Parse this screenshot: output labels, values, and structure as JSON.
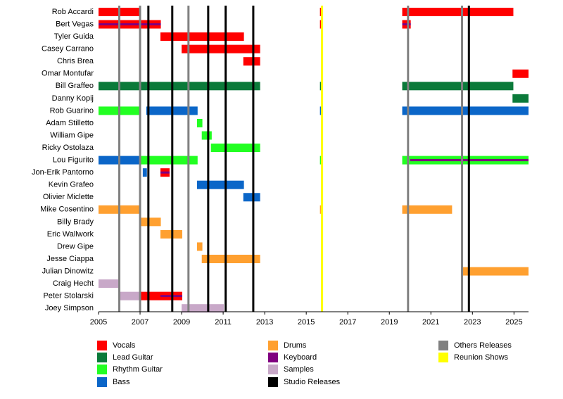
{
  "chart_data": {
    "type": "timeline",
    "categories": [
      "Rob Accardi",
      "Bert Vegas",
      "Tyler Guida",
      "Casey Carrano",
      "Chris Brea",
      "Omar Montufar",
      "Bill Graffeo",
      "Danny Kopij",
      "Rob Guarino",
      "Adam Stilletto",
      "William Gipe",
      "Ricky Ostolaza",
      "Lou Figurito",
      "Jon-Erik Pantorno",
      "Kevin Grafeo",
      "Olivier Miclette",
      "Mike Cosentino",
      "Billy Brady",
      "Eric Wallwork",
      "Drew Gipe",
      "Jesse Ciappa",
      "Julian Dinowitz",
      "Craig Hecht",
      "Peter Stolarski",
      "Joey Simpson"
    ],
    "xlim": [
      2005,
      2025.7
    ],
    "xticks": [
      2005,
      2007,
      2009,
      2011,
      2013,
      2015,
      2017,
      2019,
      2021,
      2023,
      2025
    ],
    "series": [
      {
        "name": "Vocals",
        "color": "#ff0000",
        "bars": [
          [
            0,
            2005,
            2007.03
          ],
          [
            0,
            2015.66,
            2015.8
          ],
          [
            0,
            2019.62,
            2024.97
          ],
          [
            1,
            2005,
            2008.0
          ],
          [
            1,
            2015.66,
            2015.8
          ],
          [
            1,
            2019.62,
            2020.03
          ],
          [
            2,
            2007.98,
            2012.0
          ],
          [
            3,
            2009.0,
            2012.78
          ],
          [
            4,
            2011.97,
            2012.78
          ],
          [
            5,
            2024.93,
            2025.7
          ],
          [
            13,
            2007.98,
            2008.42
          ],
          [
            23,
            2007.0,
            2009.03
          ]
        ]
      },
      {
        "name": "Lead Guitar",
        "color": "#0b7a3a",
        "bars": [
          [
            6,
            2005,
            2012.78
          ],
          [
            6,
            2015.66,
            2015.8
          ],
          [
            6,
            2019.62,
            2024.97
          ],
          [
            7,
            2024.93,
            2025.7
          ]
        ]
      },
      {
        "name": "Rhythm Guitar",
        "color": "#22ff22",
        "bars": [
          [
            8,
            2005,
            2007.03
          ],
          [
            9,
            2009.74,
            2010.0
          ],
          [
            10,
            2009.97,
            2010.45
          ],
          [
            11,
            2010.41,
            2012.78
          ],
          [
            12,
            2007.0,
            2009.77
          ],
          [
            12,
            2015.66,
            2015.8
          ],
          [
            12,
            2019.62,
            2025.7
          ]
        ]
      },
      {
        "name": "Bass",
        "color": "#0b66c8",
        "bars": [
          [
            8,
            2007.3,
            2009.77
          ],
          [
            8,
            2015.66,
            2015.8
          ],
          [
            8,
            2019.62,
            2025.7
          ],
          [
            12,
            2005,
            2007.03
          ],
          [
            13,
            2007.13,
            2007.33
          ],
          [
            14,
            2009.74,
            2012.0
          ],
          [
            15,
            2011.97,
            2012.78
          ]
        ]
      },
      {
        "name": "Drums",
        "color": "#ffa030",
        "bars": [
          [
            16,
            2005,
            2007.03
          ],
          [
            16,
            2015.66,
            2015.8
          ],
          [
            16,
            2019.62,
            2022.02
          ],
          [
            17,
            2007.0,
            2008.0
          ],
          [
            18,
            2007.98,
            2009.03
          ],
          [
            19,
            2009.74,
            2010.0
          ],
          [
            20,
            2009.97,
            2012.78
          ],
          [
            21,
            2022.5,
            2025.7
          ]
        ]
      },
      {
        "name": "Keyboard",
        "color": "#800080",
        "thin": true,
        "bars": [
          [
            1,
            2005,
            2008.0
          ],
          [
            1,
            2019.62,
            2020.03
          ],
          [
            12,
            2020.0,
            2025.7
          ],
          [
            13,
            2007.98,
            2008.42
          ],
          [
            23,
            2007.98,
            2009.03
          ]
        ]
      },
      {
        "name": "Samples",
        "color": "#c8a8c8",
        "bars": [
          [
            22,
            2005,
            2006.03
          ],
          [
            23,
            2006.0,
            2007.03
          ],
          [
            24,
            2009.0,
            2011.03
          ]
        ]
      }
    ],
    "lines": [
      {
        "name": "Studio Releases",
        "color": "#000000",
        "x": [
          2007.4,
          2008.55,
          2010.28,
          2011.12,
          2012.45,
          2022.83
        ]
      },
      {
        "name": "Others Releases",
        "color": "#808080",
        "x": [
          2006.0,
          2007.0,
          2009.33,
          2019.9,
          2022.5
        ]
      },
      {
        "name": "Reunion Shows",
        "color": "#ffff00",
        "x": [
          2015.76
        ]
      }
    ]
  }
}
